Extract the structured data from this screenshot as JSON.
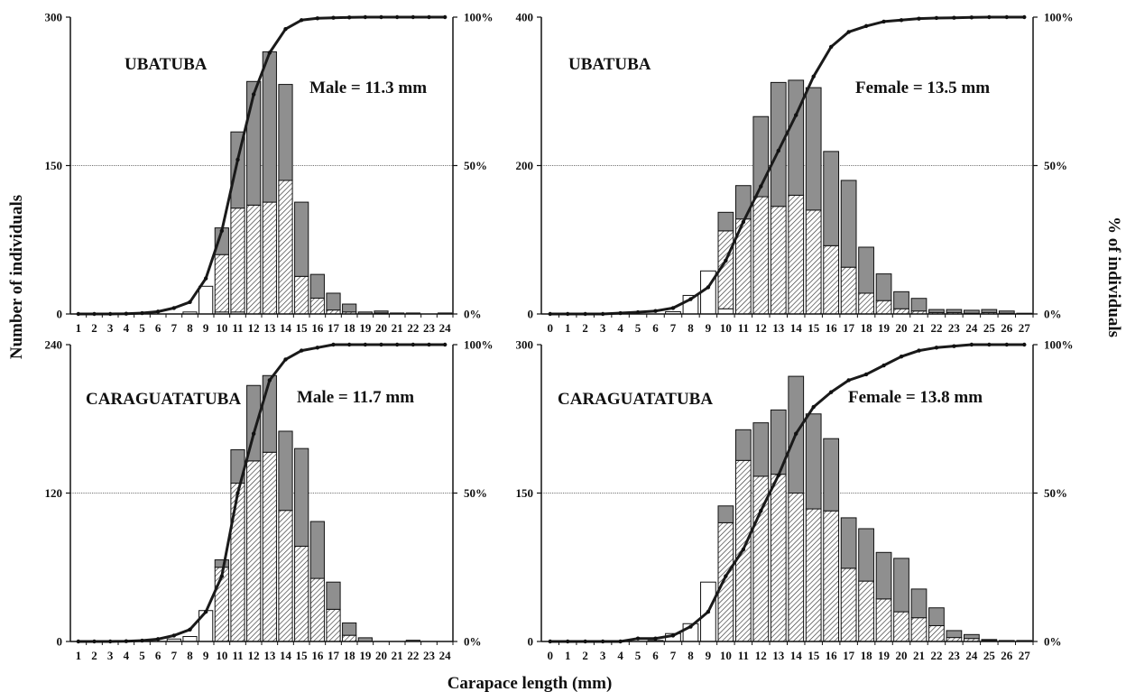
{
  "figure": {
    "ylabel_left": "Number of individuals",
    "ylabel_right": "% of individuals",
    "xlabel": "Carapace length (mm)"
  },
  "chart_data": [
    {
      "type": "bar",
      "panel": "top-left",
      "location": "UBATUBA",
      "annotation": "Male = 11.3 mm",
      "stacked_segments": [
        "juvenile",
        "adult-hatched",
        "adult-gray"
      ],
      "categories": [
        "1",
        "2",
        "3",
        "4",
        "5",
        "6",
        "7",
        "8",
        "9",
        "10",
        "11",
        "12",
        "13",
        "14",
        "15",
        "16",
        "17",
        "18",
        "19",
        "20",
        "21",
        "22",
        "23",
        "24"
      ],
      "juvenile": [
        0,
        0,
        0,
        0,
        0,
        0,
        0,
        2,
        28,
        2,
        2,
        0,
        0,
        0,
        0,
        0,
        0,
        0,
        0,
        0,
        0,
        0,
        0,
        0
      ],
      "adult_hatched": [
        0,
        0,
        0,
        0,
        0,
        0,
        0,
        0,
        0,
        58,
        105,
        110,
        113,
        135,
        38,
        16,
        4,
        2,
        0,
        1,
        0,
        0,
        0,
        0
      ],
      "adult_gray": [
        0,
        0,
        0,
        0,
        0,
        0,
        0,
        0,
        0,
        27,
        77,
        125,
        152,
        97,
        75,
        24,
        17,
        8,
        2,
        2,
        1,
        1,
        0,
        1
      ],
      "cumulative_pct": [
        0,
        0,
        0,
        0.1,
        0.3,
        0.8,
        2,
        4,
        12,
        28,
        52,
        74,
        88,
        96,
        99,
        99.6,
        99.8,
        99.9,
        100,
        100,
        100,
        100,
        100,
        100
      ],
      "ylim": [
        0,
        300
      ],
      "yticks": [
        "0",
        "150",
        "300"
      ],
      "y2ticks": [
        "0%",
        "50%",
        "100%"
      ],
      "ylim2": [
        0,
        100
      ],
      "grid": "horizontal at 50%"
    },
    {
      "type": "bar",
      "panel": "top-right",
      "location": "UBATUBA",
      "annotation": "Female = 13.5 mm",
      "stacked_segments": [
        "juvenile",
        "adult-hatched",
        "adult-gray"
      ],
      "categories": [
        "0",
        "1",
        "2",
        "3",
        "4",
        "5",
        "6",
        "7",
        "8",
        "9",
        "10",
        "11",
        "12",
        "13",
        "14",
        "15",
        "16",
        "17",
        "18",
        "19",
        "20",
        "21",
        "22",
        "23",
        "24",
        "25",
        "26",
        "27"
      ],
      "juvenile": [
        0,
        0,
        0,
        0,
        0,
        0,
        0,
        3,
        25,
        58,
        7,
        0,
        0,
        0,
        0,
        0,
        0,
        0,
        0,
        0,
        0,
        0,
        0,
        0,
        0,
        0,
        0,
        0
      ],
      "adult_hatched": [
        0,
        0,
        0,
        0,
        0,
        0,
        0,
        0,
        0,
        0,
        105,
        128,
        158,
        145,
        160,
        140,
        92,
        63,
        28,
        18,
        7,
        4,
        2,
        2,
        1,
        2,
        1,
        0
      ],
      "adult_gray": [
        0,
        0,
        0,
        0,
        0,
        0,
        0,
        0,
        0,
        0,
        25,
        45,
        108,
        167,
        155,
        165,
        127,
        117,
        62,
        36,
        23,
        17,
        4,
        4,
        4,
        4,
        3,
        1
      ],
      "cumulative_pct": [
        0,
        0,
        0,
        0,
        0.3,
        0.6,
        1,
        2,
        5,
        9,
        18,
        31,
        43,
        55,
        67,
        80,
        90,
        95,
        97,
        98.5,
        99,
        99.5,
        99.7,
        99.8,
        99.9,
        100,
        100,
        100
      ],
      "ylim": [
        0,
        400
      ],
      "yticks": [
        "0",
        "200",
        "400"
      ],
      "y2ticks": [
        "0%",
        "50%",
        "100%"
      ],
      "ylim2": [
        0,
        100
      ],
      "grid": "horizontal at 50%"
    },
    {
      "type": "bar",
      "panel": "bottom-left",
      "location": "CARAGUATATUBA",
      "annotation": "Male = 11.7 mm",
      "stacked_segments": [
        "juvenile",
        "adult-hatched",
        "adult-gray"
      ],
      "categories": [
        "1",
        "2",
        "3",
        "4",
        "5",
        "6",
        "7",
        "8",
        "9",
        "10",
        "11",
        "12",
        "13",
        "14",
        "15",
        "16",
        "17",
        "18",
        "19",
        "20",
        "21",
        "22",
        "23",
        "24"
      ],
      "juvenile": [
        0,
        0,
        0,
        0,
        0,
        0,
        2,
        4,
        25,
        0,
        0,
        0,
        0,
        0,
        0,
        0,
        0,
        0,
        0,
        0,
        0,
        0,
        0,
        0
      ],
      "adult_hatched": [
        0,
        0,
        0,
        0,
        0,
        0,
        0,
        0,
        0,
        60,
        128,
        146,
        153,
        106,
        77,
        51,
        26,
        5,
        0,
        0,
        0,
        0,
        0,
        0
      ],
      "adult_gray": [
        0,
        0,
        0,
        0,
        0,
        0,
        0,
        0,
        0,
        6,
        27,
        61,
        62,
        64,
        79,
        46,
        22,
        10,
        3,
        0,
        0,
        1,
        0,
        0
      ],
      "cumulative_pct": [
        0,
        0,
        0,
        0.1,
        0.3,
        0.8,
        2,
        4,
        10,
        22,
        50,
        70,
        88,
        95,
        98,
        99,
        100,
        100,
        100,
        100,
        100,
        100,
        100,
        100
      ],
      "ylim": [
        0,
        240
      ],
      "yticks": [
        "0",
        "120",
        "240"
      ],
      "y2ticks": [
        "0%",
        "50%",
        "100%"
      ],
      "ylim2": [
        0,
        100
      ],
      "grid": "horizontal at 50%"
    },
    {
      "type": "bar",
      "panel": "bottom-right",
      "location": "CARAGUATATUBA",
      "annotation": "Female = 13.8 mm",
      "stacked_segments": [
        "juvenile",
        "adult-hatched",
        "adult-gray"
      ],
      "categories": [
        "0",
        "1",
        "2",
        "3",
        "4",
        "5",
        "6",
        "7",
        "8",
        "9",
        "10",
        "11",
        "12",
        "13",
        "14",
        "15",
        "16",
        "17",
        "18",
        "19",
        "20",
        "21",
        "22",
        "23",
        "24",
        "25",
        "26",
        "27"
      ],
      "juvenile": [
        0,
        0,
        0,
        0,
        0,
        0,
        1,
        8,
        18,
        60,
        0,
        0,
        0,
        0,
        0,
        0,
        0,
        0,
        0,
        0,
        0,
        0,
        0,
        0,
        0,
        0,
        0,
        0
      ],
      "adult_hatched": [
        0,
        0,
        0,
        0,
        0,
        0,
        0,
        0,
        0,
        0,
        120,
        183,
        167,
        169,
        150,
        134,
        132,
        74,
        61,
        43,
        30,
        24,
        16,
        4,
        3,
        1,
        0,
        0
      ],
      "adult_gray": [
        0,
        0,
        0,
        0,
        0,
        0,
        0,
        0,
        0,
        0,
        17,
        31,
        54,
        65,
        118,
        96,
        73,
        51,
        53,
        47,
        54,
        29,
        18,
        7,
        4,
        1,
        1,
        1
      ],
      "cumulative_pct": [
        0,
        0,
        0,
        0,
        0,
        1,
        1,
        2,
        5,
        10,
        22,
        31,
        44,
        56,
        70,
        79,
        84,
        88,
        90,
        93,
        96,
        98,
        99,
        99.5,
        100,
        100,
        100,
        100
      ],
      "ylim": [
        0,
        300
      ],
      "yticks": [
        "0",
        "150",
        "300"
      ],
      "y2ticks": [
        "0%",
        "50%",
        "100%"
      ],
      "ylim2": [
        0,
        100
      ],
      "grid": "horizontal at 50%"
    }
  ]
}
